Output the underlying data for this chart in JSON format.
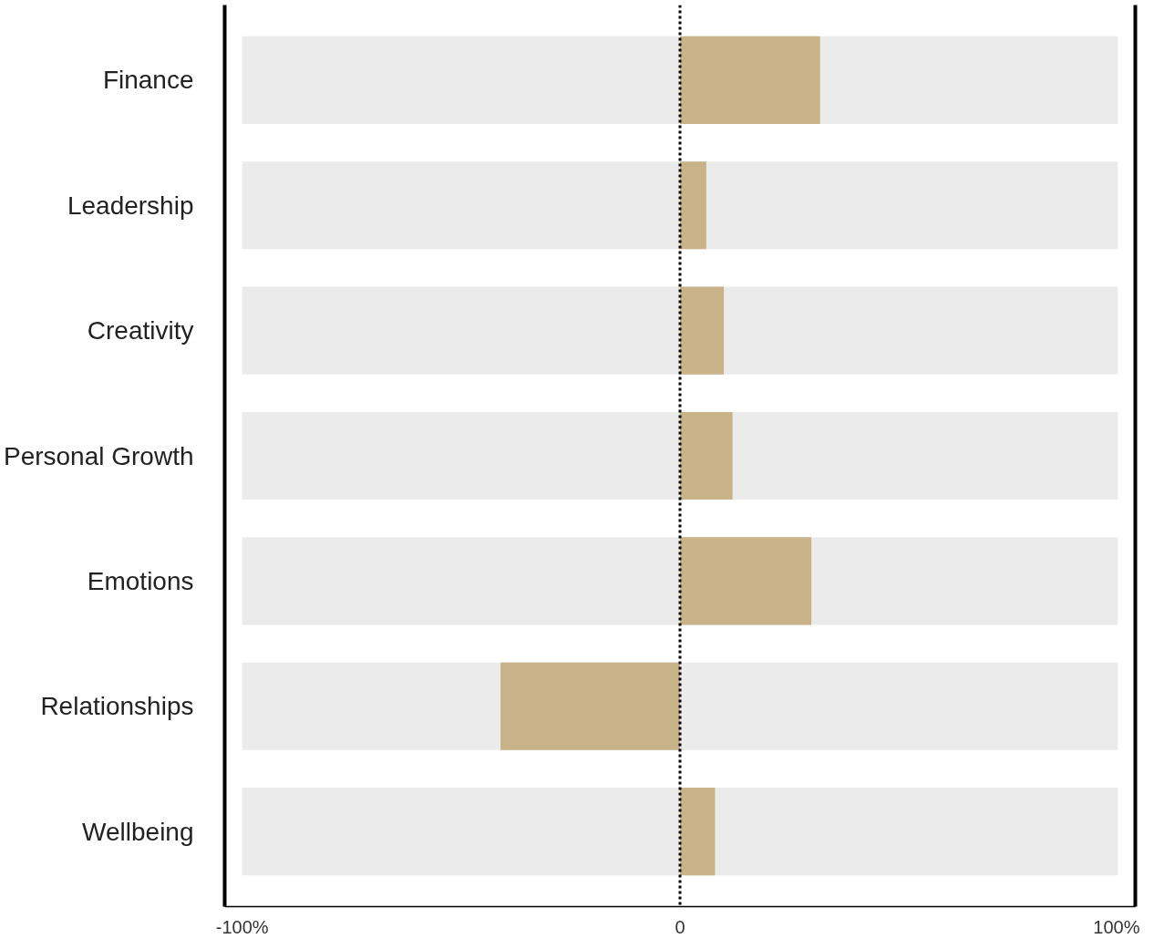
{
  "chart_data": {
    "type": "bar",
    "orientation": "horizontal",
    "categories": [
      "Finance",
      "Leadership",
      "Creativity",
      "Personal Growth",
      "Emotions",
      "Relationships",
      "Wellbeing"
    ],
    "series": [
      {
        "color": "#ebebeb",
        "base": [
          -100,
          -100,
          -100,
          -100,
          -100,
          -100,
          -100
        ],
        "values": [
          200,
          200,
          200,
          200,
          200,
          200,
          200
        ]
      },
      {
        "color": "#c8b288",
        "values": [
          32,
          6,
          10,
          12,
          30,
          -41,
          8
        ]
      }
    ],
    "xlim": [
      -104,
      104
    ],
    "xticks": [
      {
        "value": -100,
        "label": "-100%"
      },
      0,
      {
        "value": 100,
        "label": "100%"
      }
    ],
    "ref_lines": [
      {
        "axis": "x",
        "value": 0,
        "color": "#000000",
        "line_style": "dotted"
      }
    ],
    "grid": false
  }
}
